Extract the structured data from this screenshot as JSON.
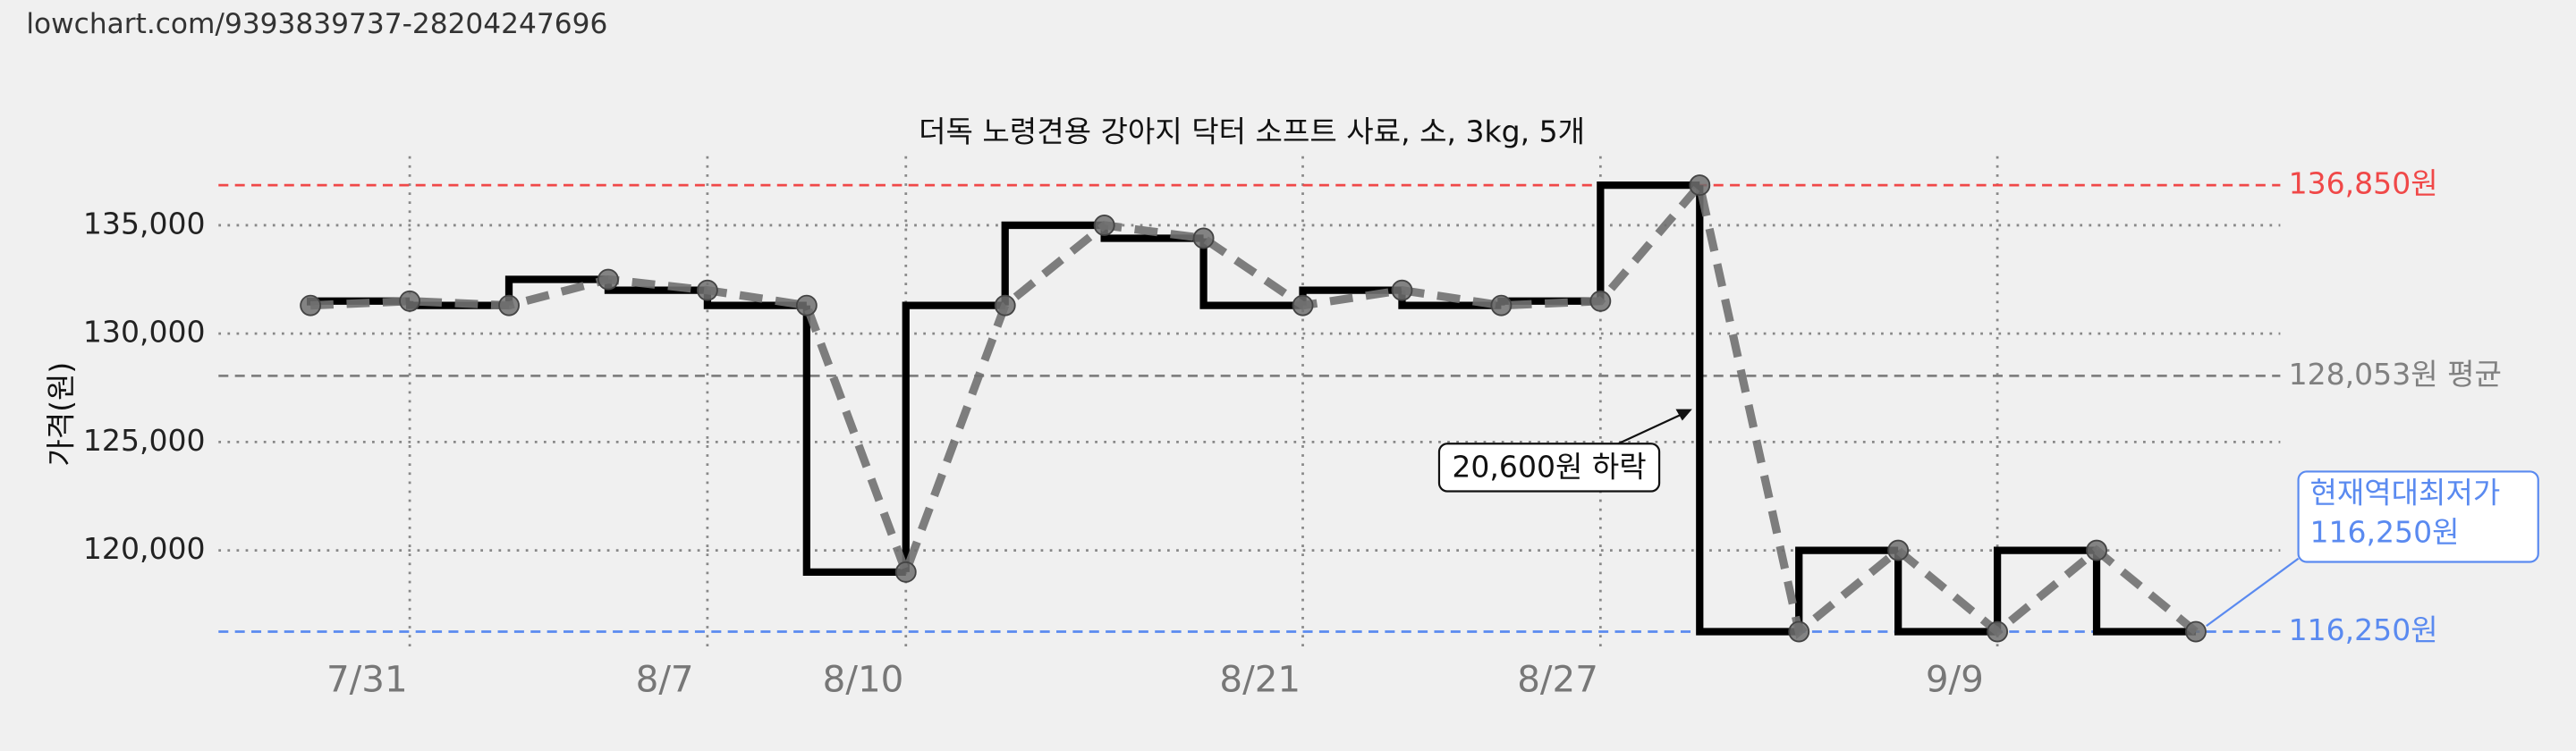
{
  "header": {
    "url": "lowchart.com/9393839737-28204247696"
  },
  "chart_data": {
    "type": "step",
    "title": "더독 노령견용 강아지 닥터 소프트 사료, 소, 3kg, 5개",
    "y_label": "가격(원)",
    "categories": [
      null,
      "7/31",
      null,
      null,
      "8/7",
      null,
      "8/10",
      null,
      null,
      null,
      "8/21",
      null,
      null,
      "8/27",
      null,
      null,
      null,
      "9/9",
      null,
      null
    ],
    "values": [
      131300,
      131500,
      131300,
      132500,
      132000,
      131300,
      119000,
      131300,
      135000,
      134400,
      131300,
      132000,
      131300,
      131500,
      136850,
      116250,
      120000,
      116250,
      120000,
      116250
    ],
    "step_color": "#000000",
    "line_color": "#707070",
    "ylim": [
      115000,
      138000
    ],
    "yticks": [
      {
        "value": 120000,
        "label": "120,000"
      },
      {
        "value": 125000,
        "label": "125,000"
      },
      {
        "value": 130000,
        "label": "130,000"
      },
      {
        "value": 135000,
        "label": "135,000"
      }
    ],
    "grid": true,
    "reference_lines": [
      {
        "value": 136850,
        "label": "136,850원",
        "color": "#f04848"
      },
      {
        "value": 128053,
        "label": "128,053원 평균",
        "color": "#808080"
      },
      {
        "value": 116250,
        "label": "116,250원",
        "color": "#5a8af0"
      }
    ],
    "annotations": [
      {
        "text": "20,600원 하락"
      },
      {
        "text": [
          "현재역대최저가",
          "116,250원"
        ]
      }
    ]
  }
}
